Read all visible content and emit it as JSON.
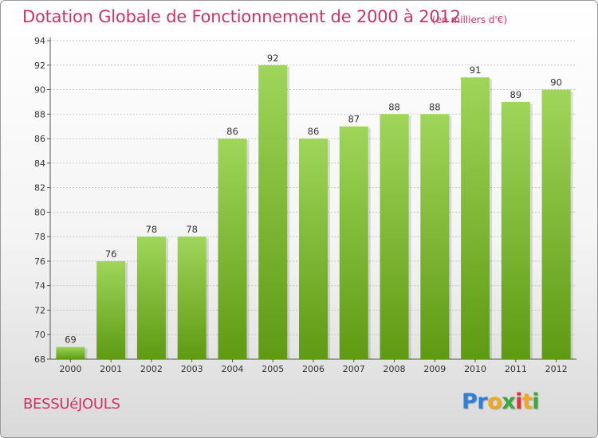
{
  "chart_data": {
    "type": "bar",
    "title": "Dotation Globale de Fonctionnement de 2000 à 2012",
    "unit_note": "(en milliers d'€)",
    "categories": [
      "2000",
      "2001",
      "2002",
      "2003",
      "2004",
      "2005",
      "2006",
      "2007",
      "2008",
      "2009",
      "2010",
      "2011",
      "2012"
    ],
    "values": [
      69,
      76,
      78,
      78,
      86,
      92,
      86,
      87,
      88,
      88,
      91,
      89,
      90
    ],
    "ylim": [
      68,
      94
    ],
    "yticks": [
      68,
      70,
      72,
      74,
      76,
      78,
      80,
      82,
      84,
      86,
      88,
      90,
      92,
      94
    ],
    "xlabel": "",
    "ylabel": "",
    "grid": "horizontal",
    "bar_color_top": "#9fd65a",
    "bar_color_bottom": "#5e9a12"
  },
  "footer": {
    "commune": "BESSUéJOULS",
    "logo_letters": [
      {
        "ch": "P",
        "color": "#2e7fd6"
      },
      {
        "ch": "r",
        "color": "#2e7fd6"
      },
      {
        "ch": "o",
        "color": "#f2a81d"
      },
      {
        "ch": "x",
        "color": "#3aa83a"
      },
      {
        "ch": "i",
        "color": "#e0323a"
      },
      {
        "ch": "t",
        "color": "#f2a81d"
      },
      {
        "ch": "i",
        "color": "#3aa83a"
      }
    ]
  }
}
